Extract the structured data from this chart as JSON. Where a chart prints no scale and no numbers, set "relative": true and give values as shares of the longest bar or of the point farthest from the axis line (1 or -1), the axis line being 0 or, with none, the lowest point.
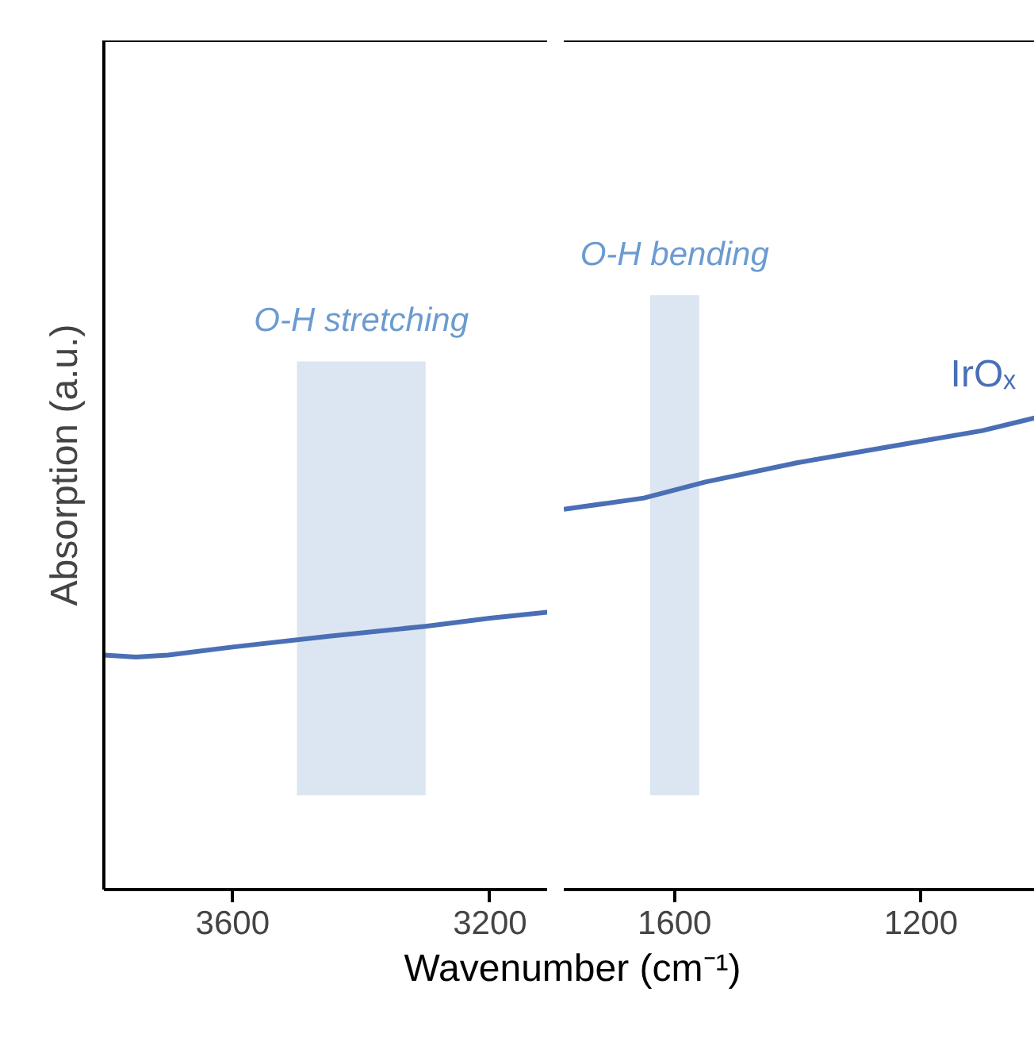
{
  "chart_data": [
    {
      "type": "line",
      "relative": true,
      "ylabel": "Absorption (a.u.)",
      "xlabel": "Wavenumber (cm⁻¹)",
      "xlim": [
        3800,
        3110
      ],
      "xticks": [
        3600,
        3200
      ],
      "tick_labels": "x",
      "series": [
        {
          "color": "#4a6fb5",
          "x": [
            3800,
            3750,
            3700,
            3600,
            3450,
            3300,
            3200,
            3110
          ],
          "values": [
            0.845,
            0.838,
            0.845,
            0.874,
            0.913,
            0.949,
            0.978,
            1.0
          ]
        }
      ],
      "bands": [
        {
          "axis": "x",
          "from": 3500,
          "to": 3300,
          "label": "O-H stretching",
          "color": "#dce6f2"
        }
      ]
    },
    {
      "type": "line",
      "relative": true,
      "xlim": [
        1780,
        1015
      ],
      "xticks": [
        1600,
        1200
      ],
      "tick_labels": "x",
      "series": [
        {
          "name": "IrOₓ",
          "color": "#4a6fb5",
          "x": [
            1780,
            1650,
            1550,
            1400,
            1250,
            1100,
            1015
          ],
          "values": [
            0.806,
            0.83,
            0.864,
            0.905,
            0.939,
            0.973,
            1.0
          ]
        }
      ],
      "bands": [
        {
          "axis": "x",
          "from": 1640,
          "to": 1560,
          "label": "O-H bending",
          "color": "#dce6f2"
        }
      ]
    }
  ]
}
